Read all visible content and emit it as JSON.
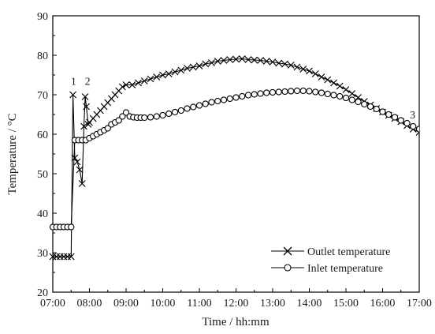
{
  "chart_data": {
    "type": "line",
    "title": "",
    "xlabel": "Time / hh:mm",
    "ylabel": "Temperature / °C",
    "xlim": [
      "07:00",
      "17:00"
    ],
    "ylim": [
      20,
      90
    ],
    "x_ticks": [
      "07:00",
      "08:00",
      "09:00",
      "10:00",
      "11:00",
      "12:00",
      "13:00",
      "14:00",
      "15:00",
      "16:00",
      "17:00"
    ],
    "y_ticks": [
      20,
      30,
      40,
      50,
      60,
      70,
      80,
      90
    ],
    "grid": false,
    "legend_position": "bottom-right",
    "annotations": [
      {
        "text": "1",
        "x": "07:34",
        "y": 72.5
      },
      {
        "text": "2",
        "x": "07:57",
        "y": 72.5
      },
      {
        "text": "3",
        "x": "16:49",
        "y": 64
      }
    ],
    "series": [
      {
        "name": "Outlet temperature",
        "marker": "x",
        "color": "#000000",
        "x": [
          "07:00",
          "07:06",
          "07:12",
          "07:18",
          "07:24",
          "07:30",
          "07:33",
          "07:36",
          "07:40",
          "07:44",
          "07:48",
          "07:51",
          "07:53",
          "07:55",
          "07:58",
          "08:00",
          "08:06",
          "08:12",
          "08:18",
          "08:24",
          "08:30",
          "08:36",
          "08:42",
          "08:48",
          "08:54",
          "09:00",
          "09:10",
          "09:20",
          "09:30",
          "09:40",
          "09:50",
          "10:00",
          "10:10",
          "10:20",
          "10:30",
          "10:40",
          "10:50",
          "11:00",
          "11:10",
          "11:20",
          "11:30",
          "11:40",
          "11:50",
          "12:00",
          "12:10",
          "12:20",
          "12:30",
          "12:40",
          "12:50",
          "13:00",
          "13:10",
          "13:20",
          "13:30",
          "13:40",
          "13:50",
          "14:00",
          "14:10",
          "14:20",
          "14:30",
          "14:40",
          "14:50",
          "15:00",
          "15:10",
          "15:20",
          "15:30",
          "15:40",
          "15:50",
          "16:00",
          "16:10",
          "16:20",
          "16:30",
          "16:40",
          "16:50",
          "17:00"
        ],
        "values": [
          29,
          29,
          29,
          29,
          29,
          29,
          70,
          54,
          53,
          51,
          47.5,
          62,
          69.5,
          67,
          62.5,
          63,
          64,
          65,
          66,
          67,
          68,
          69,
          70,
          71,
          72,
          72.5,
          72.5,
          73,
          73.5,
          74,
          74.5,
          75,
          75.3,
          75.8,
          76.2,
          76.7,
          77,
          77.3,
          77.8,
          78.1,
          78.5,
          78.7,
          78.9,
          79,
          79.1,
          78.9,
          78.8,
          78.7,
          78.5,
          78.3,
          78,
          77.8,
          77.5,
          77,
          76.5,
          76,
          75.3,
          74.5,
          73.8,
          73,
          72.2,
          71.3,
          70.3,
          69.3,
          68.3,
          67.4,
          66.5,
          65.6,
          64.8,
          64,
          63.2,
          62.2,
          61.3,
          60.5
        ]
      },
      {
        "name": "Inlet temperature",
        "marker": "o",
        "color": "#000000",
        "x": [
          "07:00",
          "07:06",
          "07:12",
          "07:18",
          "07:24",
          "07:30",
          "07:36",
          "07:42",
          "07:48",
          "07:54",
          "08:00",
          "08:06",
          "08:12",
          "08:18",
          "08:24",
          "08:30",
          "08:36",
          "08:42",
          "08:48",
          "08:54",
          "09:00",
          "09:06",
          "09:12",
          "09:18",
          "09:24",
          "09:30",
          "09:40",
          "09:50",
          "10:00",
          "10:10",
          "10:20",
          "10:30",
          "10:40",
          "10:50",
          "11:00",
          "11:10",
          "11:20",
          "11:30",
          "11:40",
          "11:50",
          "12:00",
          "12:10",
          "12:20",
          "12:30",
          "12:40",
          "12:50",
          "13:00",
          "13:10",
          "13:20",
          "13:30",
          "13:40",
          "13:50",
          "14:00",
          "14:10",
          "14:20",
          "14:30",
          "14:40",
          "14:50",
          "15:00",
          "15:10",
          "15:20",
          "15:30",
          "15:40",
          "15:50",
          "16:00",
          "16:10",
          "16:20",
          "16:30",
          "16:40",
          "16:50",
          "17:00"
        ],
        "values": [
          36.5,
          36.5,
          36.5,
          36.5,
          36.5,
          36.5,
          58.5,
          58.5,
          58.5,
          58.5,
          59,
          59.5,
          60,
          60.5,
          61,
          61.5,
          62.5,
          63,
          63.5,
          64.5,
          65.5,
          64.5,
          64.3,
          64.2,
          64.2,
          64.2,
          64.3,
          64.5,
          64.8,
          65.2,
          65.6,
          66,
          66.5,
          66.9,
          67.3,
          67.7,
          68.1,
          68.4,
          68.7,
          69,
          69.3,
          69.6,
          69.9,
          70.1,
          70.3,
          70.5,
          70.6,
          70.7,
          70.8,
          70.9,
          71,
          71,
          70.9,
          70.7,
          70.5,
          70.2,
          69.9,
          69.6,
          69.2,
          68.7,
          68.2,
          67.6,
          67,
          66.4,
          65.7,
          65,
          64.3,
          63.5,
          62.8,
          62,
          61.3
        ]
      }
    ]
  }
}
